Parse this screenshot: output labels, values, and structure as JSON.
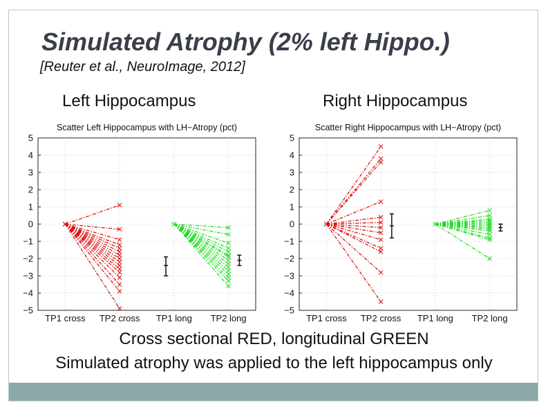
{
  "slide": {
    "title": "Simulated Atrophy (2% left Hippo.)",
    "citation": "[Reuter et al., NeuroImage, 2012]",
    "left_heading": "Left Hippocampus",
    "right_heading": "Right Hippocampus",
    "caption_line1": "Cross sectional RED, longitudinal GREEN",
    "caption_line2": "Simulated atrophy was applied to the left hippocampus only",
    "accent_color": "#8aa8a8"
  },
  "chart_data": [
    {
      "type": "line",
      "title": "Scatter Left Hippocampus with LH−Atropy (pct)",
      "categories": [
        "TP1 cross",
        "TP2 cross",
        "TP1 long",
        "TP2 long"
      ],
      "ylim": [
        -5,
        5
      ],
      "yticks": [
        "5",
        "4",
        "3",
        "2",
        "1",
        "0",
        "−1",
        "−2",
        "−3",
        "−4",
        "−5"
      ],
      "series": [
        {
          "name": "Cross sectional",
          "color": "#dd1111",
          "start": 0,
          "end": [
            1.1,
            -0.3,
            -0.9,
            -1.2,
            -1.4,
            -1.6,
            -1.8,
            -2.0,
            -2.2,
            -2.4,
            -2.6,
            -2.8,
            -3.1,
            -3.5,
            -3.9,
            -4.9
          ]
        },
        {
          "name": "Longitudinal",
          "color": "#22dd22",
          "start": 0,
          "end": [
            -0.2,
            -0.6,
            -1.1,
            -1.4,
            -1.6,
            -1.8,
            -1.9,
            -2.1,
            -2.3,
            -2.5,
            -2.7,
            -2.9,
            -3.1,
            -3.3,
            -3.6
          ]
        }
      ],
      "error_bars": [
        {
          "category_pos": 2.85,
          "mean": -2.4,
          "low": -3.0,
          "high": -1.9
        },
        {
          "category_pos": 4.2,
          "mean": -2.1,
          "low": -2.4,
          "high": -1.8
        }
      ]
    },
    {
      "type": "line",
      "title": "Scatter Right Hippocampus with LH−Atropy (pct)",
      "categories": [
        "TP1 cross",
        "TP2 cross",
        "TP1 long",
        "TP2 long"
      ],
      "ylim": [
        -5,
        5
      ],
      "yticks": [
        "5",
        "4",
        "3",
        "2",
        "1",
        "0",
        "−1",
        "−2",
        "−3",
        "−4",
        "−5"
      ],
      "series": [
        {
          "name": "Cross sectional",
          "color": "#dd1111",
          "start": 0,
          "end": [
            4.5,
            3.8,
            3.6,
            1.3,
            0.4,
            0.1,
            -0.2,
            -0.5,
            -0.9,
            -1.4,
            -1.6,
            -2.8,
            -4.5
          ]
        },
        {
          "name": "Longitudinal",
          "color": "#22dd22",
          "start": 0,
          "end": [
            0.8,
            0.5,
            0.3,
            0.2,
            0.1,
            0.0,
            -0.1,
            -0.2,
            -0.3,
            -0.4,
            -0.6,
            -0.8,
            -0.9,
            -2.0
          ]
        }
      ],
      "error_bars": [
        {
          "category_pos": 2.2,
          "mean": -0.1,
          "low": -0.8,
          "high": 0.6
        },
        {
          "category_pos": 4.2,
          "mean": -0.2,
          "low": -0.4,
          "high": 0.0
        }
      ]
    }
  ]
}
